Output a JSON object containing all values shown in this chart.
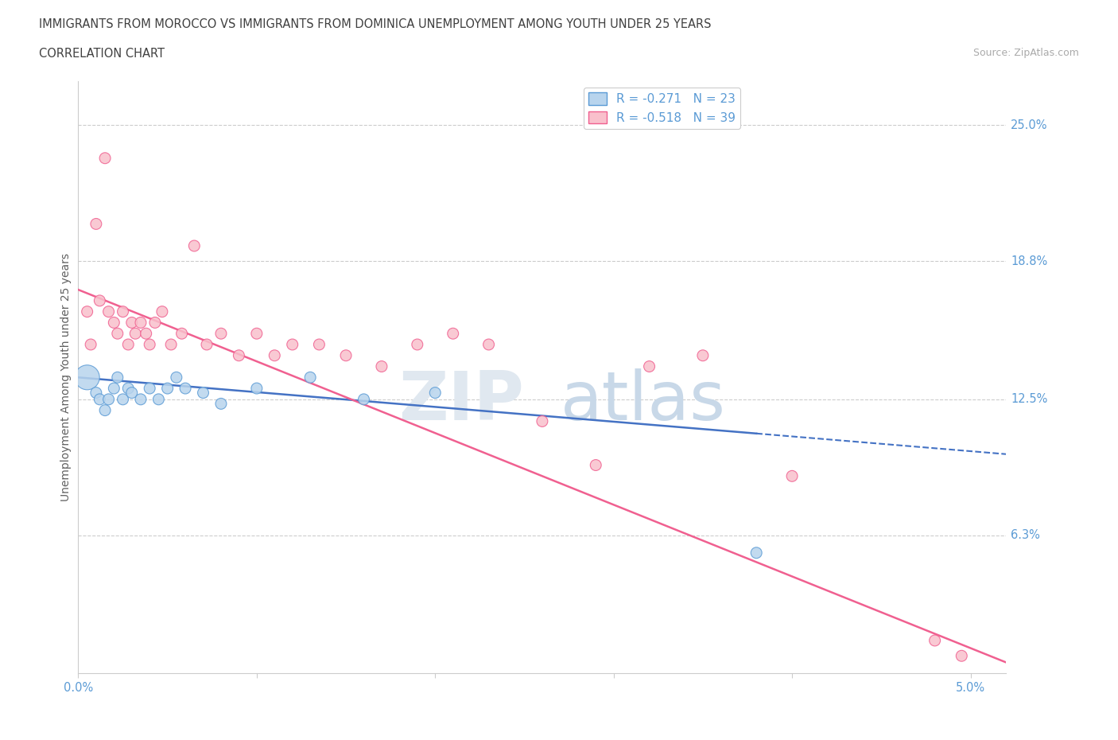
{
  "title_line1": "IMMIGRANTS FROM MOROCCO VS IMMIGRANTS FROM DOMINICA UNEMPLOYMENT AMONG YOUTH UNDER 25 YEARS",
  "title_line2": "CORRELATION CHART",
  "source": "Source: ZipAtlas.com",
  "ylabel": "Unemployment Among Youth under 25 years",
  "xlim": [
    0.0,
    5.2
  ],
  "ylim": [
    0.0,
    27.0
  ],
  "x_ticks": [
    0.0,
    1.0,
    2.0,
    3.0,
    4.0,
    5.0
  ],
  "x_tick_labels": [
    "0.0%",
    "",
    "",
    "",
    "",
    "5.0%"
  ],
  "y_ticks_right": [
    6.3,
    12.5,
    18.8,
    25.0
  ],
  "y_tick_labels_right": [
    "6.3%",
    "12.5%",
    "18.8%",
    "25.0%"
  ],
  "morocco_color": "#b8d4ed",
  "dominica_color": "#f9c0cc",
  "morocco_edge_color": "#5b9bd5",
  "dominica_edge_color": "#f06090",
  "morocco_line_color": "#4472c4",
  "dominica_line_color": "#f06090",
  "morocco_R": -0.271,
  "morocco_N": 23,
  "dominica_R": -0.518,
  "dominica_N": 39,
  "background_color": "#ffffff",
  "grid_color": "#cccccc",
  "title_color": "#404040",
  "axis_label_color": "#606060",
  "tick_label_color": "#5b9bd5",
  "source_color": "#aaaaaa",
  "morocco_x": [
    0.05,
    0.1,
    0.12,
    0.15,
    0.17,
    0.2,
    0.22,
    0.25,
    0.28,
    0.3,
    0.35,
    0.4,
    0.45,
    0.5,
    0.55,
    0.6,
    0.7,
    0.8,
    1.0,
    1.3,
    1.6,
    2.0,
    3.8
  ],
  "morocco_y": [
    13.5,
    12.8,
    12.5,
    12.0,
    12.5,
    13.0,
    13.5,
    12.5,
    13.0,
    12.8,
    12.5,
    13.0,
    12.5,
    13.0,
    13.5,
    13.0,
    12.8,
    12.3,
    13.0,
    13.5,
    12.5,
    12.8,
    5.5
  ],
  "morocco_sizes": [
    500,
    100,
    100,
    100,
    100,
    100,
    100,
    100,
    100,
    100,
    100,
    100,
    100,
    100,
    100,
    100,
    100,
    100,
    100,
    100,
    100,
    100,
    100
  ],
  "dominica_x": [
    0.05,
    0.07,
    0.1,
    0.12,
    0.15,
    0.17,
    0.2,
    0.22,
    0.25,
    0.28,
    0.3,
    0.32,
    0.35,
    0.38,
    0.4,
    0.43,
    0.47,
    0.52,
    0.58,
    0.65,
    0.72,
    0.8,
    0.9,
    1.0,
    1.1,
    1.2,
    1.35,
    1.5,
    1.7,
    1.9,
    2.1,
    2.3,
    2.6,
    2.9,
    3.2,
    3.5,
    4.0,
    4.8,
    4.95
  ],
  "dominica_y": [
    16.5,
    15.0,
    20.5,
    17.0,
    23.5,
    16.5,
    16.0,
    15.5,
    16.5,
    15.0,
    16.0,
    15.5,
    16.0,
    15.5,
    15.0,
    16.0,
    16.5,
    15.0,
    15.5,
    19.5,
    15.0,
    15.5,
    14.5,
    15.5,
    14.5,
    15.0,
    15.0,
    14.5,
    14.0,
    15.0,
    15.5,
    15.0,
    11.5,
    9.5,
    14.0,
    14.5,
    9.0,
    1.5,
    0.8
  ],
  "dominica_sizes": [
    100,
    100,
    100,
    100,
    100,
    100,
    100,
    100,
    100,
    100,
    100,
    100,
    100,
    100,
    100,
    100,
    100,
    100,
    100,
    100,
    100,
    100,
    100,
    100,
    100,
    100,
    100,
    100,
    100,
    100,
    100,
    100,
    100,
    100,
    100,
    100,
    100,
    100,
    100
  ],
  "morocco_trend_x": [
    0.0,
    5.2
  ],
  "morocco_trend_y": [
    13.5,
    10.0
  ],
  "dominica_trend_x": [
    0.0,
    5.2
  ],
  "dominica_trend_y": [
    17.5,
    0.5
  ],
  "morocco_solid_end": 2.1,
  "watermark_zip_color": "#e0e8f0",
  "watermark_atlas_color": "#c8d8e8"
}
